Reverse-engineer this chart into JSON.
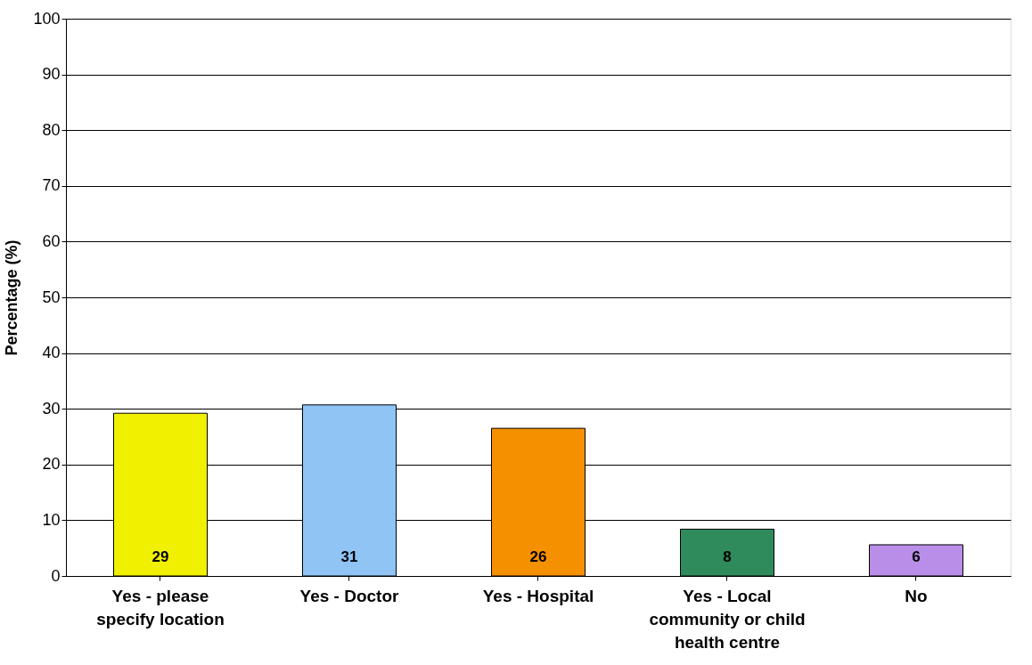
{
  "chart_data": {
    "type": "bar",
    "ylabel": "Percentage (%)",
    "categories": [
      "Yes - please specify location",
      "Yes - Doctor",
      "Yes - Hospital",
      "Yes - Local community or child health centre",
      "No"
    ],
    "values": [
      29.2,
      30.7,
      26.5,
      8.4,
      5.6
    ],
    "value_labels": [
      "29",
      "31",
      "26",
      "8",
      "6"
    ],
    "colors": [
      "#f0f000",
      "#8fc4f5",
      "#f59000",
      "#2f8a5c",
      "#b98ee8"
    ],
    "ylim": [
      0,
      100
    ],
    "yticks": [
      0,
      10,
      20,
      30,
      40,
      50,
      60,
      70,
      80,
      90,
      100
    ],
    "grid": "y"
  }
}
